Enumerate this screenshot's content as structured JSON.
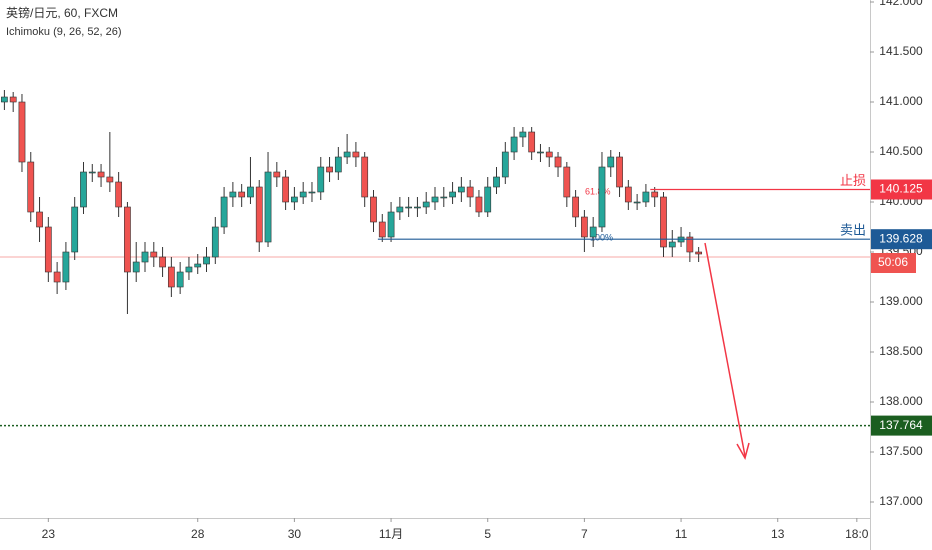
{
  "chart_data": {
    "type": "candlestick",
    "title": "英镑/日元, 60, FXCM",
    "subtitle": "Ichimoku (9, 26, 52, 26)",
    "up_color": "#26a69a",
    "down_color": "#ef5350",
    "grid": false,
    "xlim": [
      -0.5,
      98.5
    ],
    "xticks": [
      {
        "value": 5,
        "label": "23"
      },
      {
        "value": 22,
        "label": "28"
      },
      {
        "value": 33,
        "label": "30"
      },
      {
        "value": 44,
        "label": "11月"
      },
      {
        "value": 55,
        "label": "5"
      },
      {
        "value": 66,
        "label": "7"
      },
      {
        "value": 77,
        "label": "11"
      },
      {
        "value": 88,
        "label": "13"
      },
      {
        "value": 97,
        "label": "18:0"
      }
    ],
    "ylim": [
      136.84,
      142.02
    ],
    "yticks": [
      {
        "value": 137,
        "label": "137.000"
      },
      {
        "value": 137.5,
        "label": "137.500"
      },
      {
        "value": 138,
        "label": "138.000"
      },
      {
        "value": 138.5,
        "label": "138.500"
      },
      {
        "value": 139,
        "label": "139.000"
      },
      {
        "value": 139.5,
        "label": "139.500"
      },
      {
        "value": 140,
        "label": "140.000"
      },
      {
        "value": 140.5,
        "label": "140.500"
      },
      {
        "value": 141,
        "label": "141.000"
      },
      {
        "value": 141.5,
        "label": "141.500"
      },
      {
        "value": 142,
        "label": "142.000"
      }
    ],
    "open": [
      141.0,
      141.05,
      141.0,
      140.4,
      139.9,
      139.75,
      139.3,
      139.2,
      139.5,
      139.95,
      140.3,
      140.3,
      140.25,
      140.2,
      139.95,
      139.3,
      139.4,
      139.5,
      139.45,
      139.35,
      139.15,
      139.3,
      139.35,
      139.38,
      139.45,
      139.75,
      140.05,
      140.1,
      140.05,
      140.15,
      139.6,
      140.3,
      140.25,
      140.0,
      140.05,
      140.1,
      140.1,
      140.35,
      140.3,
      140.45,
      140.5,
      140.45,
      140.05,
      139.8,
      139.65,
      139.9,
      139.95,
      139.95,
      139.95,
      140.0,
      140.05,
      140.05,
      140.1,
      140.15,
      140.05,
      139.9,
      140.15,
      140.25,
      140.5,
      140.65,
      140.7,
      140.5,
      140.5,
      140.45,
      140.35,
      140.05,
      139.85,
      139.65,
      139.75,
      140.35,
      140.45,
      140.15,
      140.0,
      140.0,
      140.1,
      140.05,
      139.55,
      139.6,
      139.65,
      139.5
    ],
    "high": [
      141.12,
      141.1,
      141.08,
      140.5,
      140.05,
      139.85,
      139.4,
      139.6,
      140.05,
      140.4,
      140.38,
      140.38,
      140.7,
      140.3,
      140.0,
      139.6,
      139.6,
      139.6,
      139.55,
      139.45,
      139.4,
      139.45,
      139.48,
      139.55,
      139.85,
      140.15,
      140.2,
      140.18,
      140.45,
      140.22,
      140.5,
      140.4,
      140.32,
      140.15,
      140.2,
      140.2,
      140.45,
      140.45,
      140.55,
      140.68,
      140.6,
      140.5,
      140.12,
      139.88,
      140.0,
      140.05,
      140.05,
      140.05,
      140.1,
      140.15,
      140.15,
      140.2,
      140.25,
      140.22,
      140.12,
      140.25,
      140.35,
      140.6,
      140.75,
      140.75,
      140.75,
      140.58,
      140.55,
      140.5,
      140.4,
      140.12,
      139.92,
      139.85,
      140.5,
      140.52,
      140.5,
      140.22,
      140.08,
      140.18,
      140.15,
      140.1,
      139.72,
      139.75,
      139.7,
      139.55
    ],
    "low": [
      140.92,
      140.9,
      140.3,
      139.8,
      139.6,
      139.2,
      139.08,
      139.12,
      139.42,
      139.88,
      140.2,
      140.15,
      140.1,
      139.85,
      138.88,
      139.2,
      139.3,
      139.35,
      139.25,
      139.05,
      139.08,
      139.22,
      139.28,
      139.3,
      139.38,
      139.68,
      139.95,
      139.95,
      139.98,
      139.5,
      139.55,
      140.15,
      139.92,
      139.92,
      139.98,
      140.0,
      140.02,
      140.2,
      140.22,
      140.38,
      140.35,
      139.95,
      139.7,
      139.6,
      139.6,
      139.82,
      139.85,
      139.85,
      139.88,
      139.92,
      139.95,
      139.98,
      140.0,
      139.95,
      139.85,
      139.85,
      140.08,
      140.18,
      140.42,
      140.55,
      140.42,
      140.4,
      140.35,
      140.25,
      139.95,
      139.75,
      139.5,
      139.55,
      139.7,
      140.25,
      140.05,
      139.92,
      139.92,
      139.95,
      139.95,
      139.45,
      139.45,
      139.55,
      139.4,
      139.4
    ],
    "close": [
      141.05,
      141.0,
      140.4,
      139.9,
      139.75,
      139.3,
      139.2,
      139.5,
      139.95,
      140.3,
      140.3,
      140.25,
      140.2,
      139.95,
      139.3,
      139.4,
      139.5,
      139.45,
      139.35,
      139.15,
      139.3,
      139.35,
      139.38,
      139.45,
      139.75,
      140.05,
      140.1,
      140.05,
      140.15,
      139.6,
      140.3,
      140.25,
      140.0,
      140.05,
      140.1,
      140.1,
      140.35,
      140.3,
      140.45,
      140.5,
      140.45,
      140.05,
      139.8,
      139.65,
      139.9,
      139.95,
      139.95,
      139.95,
      140.0,
      140.05,
      140.05,
      140.1,
      140.15,
      140.05,
      139.9,
      140.15,
      140.25,
      140.5,
      140.65,
      140.7,
      140.5,
      140.5,
      140.45,
      140.35,
      140.05,
      139.85,
      139.65,
      139.75,
      140.35,
      140.45,
      140.15,
      140.0,
      140.0,
      140.1,
      140.05,
      139.55,
      139.6,
      139.65,
      139.5,
      139.48
    ],
    "levels": [
      {
        "name": "止损",
        "value": 140.125,
        "color": "#f23645"
      },
      {
        "name": "卖出",
        "value": 139.628,
        "color": "#1e5a96"
      },
      {
        "value": 137.764,
        "color": "#1b5e20"
      }
    ],
    "current": {
      "value": 139.45,
      "label": "50:06",
      "color": "#ef5350"
    },
    "annotations": [
      "61.8%",
      "100%"
    ]
  }
}
